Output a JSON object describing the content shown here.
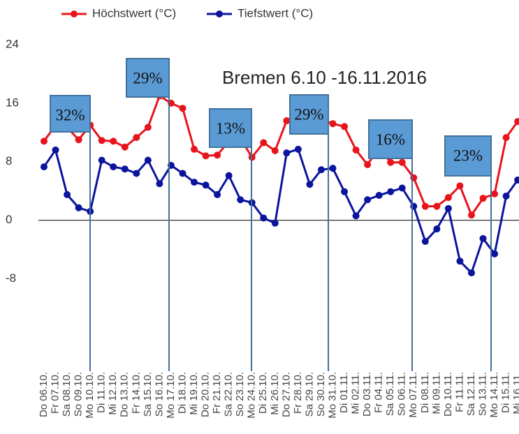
{
  "chart_data": {
    "type": "line",
    "title": "Bremen 6.10 -16.11.2016",
    "categories": [
      "Do 06.10.",
      "Fr 07.10.",
      "Sa 08.10.",
      "So 09.10.",
      "Mo 10.10.",
      "Di 11.10.",
      "Mi 12.10.",
      "Do 13.10.",
      "Fr 14.10.",
      "Sa 15.10.",
      "So 16.10.",
      "Mo 17.10.",
      "Di 18.10.",
      "Mi 19.10.",
      "Do 20.10.",
      "Fr 21.10.",
      "Sa 22.10.",
      "So 23.10.",
      "Mo 24.10.",
      "Di 25.10.",
      "Mi 26.10.",
      "Do 27.10.",
      "Fr 28.10.",
      "Sa 29.10.",
      "So 30.10.",
      "Mo 31.10.",
      "Di 01.11.",
      "Mi 02.11.",
      "Do 03.11.",
      "Fr 04.11.",
      "Sa 05.11.",
      "So 06.11.",
      "Mo 07.11.",
      "Di 08.11.",
      "Mi 09.11.",
      "Do 10.11.",
      "Fr 11.11.",
      "Sa 12.11.",
      "So 13.11.",
      "Mo 14.11.",
      "Di 15.11.",
      "Mi 16.11."
    ],
    "series": [
      {
        "name": "Höchstwert (°C)",
        "color": "#e8141c",
        "values": [
          10.8,
          13.0,
          12.7,
          11.0,
          13.0,
          10.9,
          10.8,
          10.0,
          11.3,
          12.7,
          17.0,
          16.0,
          15.3,
          9.7,
          8.8,
          8.9,
          10.8,
          11.2,
          8.6,
          10.6,
          9.5,
          13.6,
          13.8,
          14.0,
          13.8,
          13.2,
          12.8,
          9.6,
          7.6,
          9.9,
          7.9,
          7.9,
          5.8,
          1.9,
          1.9,
          3.1,
          4.7,
          0.7,
          3.0,
          3.6,
          11.3,
          13.5
        ]
      },
      {
        "name": "Tiefstwert (°C)",
        "color": "#0b149c",
        "values": [
          7.3,
          9.6,
          3.5,
          1.7,
          1.2,
          8.2,
          7.3,
          7.0,
          6.4,
          8.2,
          5.0,
          7.5,
          6.4,
          5.2,
          4.8,
          3.5,
          6.1,
          2.8,
          2.4,
          0.3,
          -0.4,
          9.2,
          9.7,
          4.9,
          6.9,
          7.1,
          3.9,
          0.6,
          2.8,
          3.4,
          3.9,
          4.4,
          1.9,
          -2.9,
          -1.2,
          1.6,
          -5.6,
          -7.2,
          -2.5,
          -4.6,
          3.3,
          5.5
        ]
      }
    ],
    "ylim": [
      -10,
      24
    ],
    "yticks": [
      -8,
      0,
      8,
      16,
      24
    ],
    "annotations": [
      "32%",
      "29%",
      "13%",
      "29%",
      "16%",
      "23%"
    ]
  }
}
